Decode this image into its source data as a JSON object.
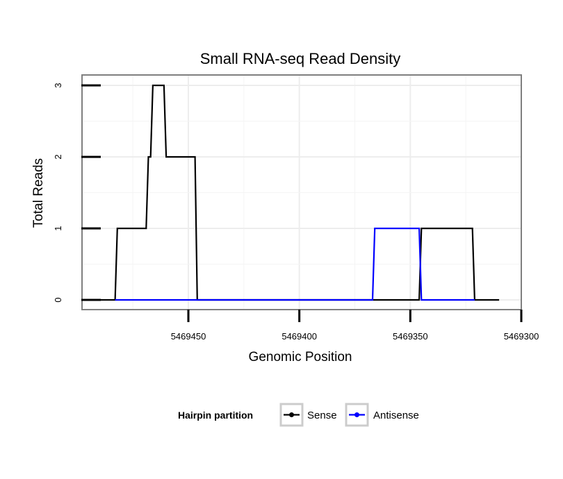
{
  "chart_data": {
    "type": "line",
    "title": "Small RNA-seq Read Density",
    "xlabel": "Genomic Position",
    "ylabel": "Total Reads",
    "xlim": [
      5469300,
      5469500
    ],
    "x_reversed": true,
    "ylim": [
      0,
      3
    ],
    "x_ticks": [
      5469450,
      5469400,
      5469350,
      5469300
    ],
    "x_tick_labels": [
      "5469450",
      "5469400",
      "5469350",
      "5469300"
    ],
    "y_ticks": [
      0,
      1,
      2,
      3
    ],
    "y_tick_labels": [
      "0",
      "1",
      "2",
      "3"
    ],
    "grid": true,
    "legend": {
      "title": "Hairpin partition",
      "position": "bottom"
    },
    "series": [
      {
        "name": "Sense",
        "color": "#000000",
        "x": [
          5469490,
          5469483,
          5469482,
          5469469,
          5469468,
          5469467,
          5469466,
          5469461,
          5469460,
          5469447,
          5469446,
          5469346,
          5469345,
          5469344,
          5469322,
          5469321,
          5469310
        ],
        "y": [
          0,
          0,
          1,
          1,
          2,
          2,
          3,
          3,
          2,
          2,
          0,
          0,
          1,
          1,
          1,
          0,
          0
        ]
      },
      {
        "name": "Antisense",
        "color": "#0000ff",
        "x": [
          5469483,
          5469367,
          5469366,
          5469346,
          5469345,
          5469321
        ],
        "y": [
          0,
          0,
          1,
          1,
          0,
          0
        ]
      }
    ]
  }
}
